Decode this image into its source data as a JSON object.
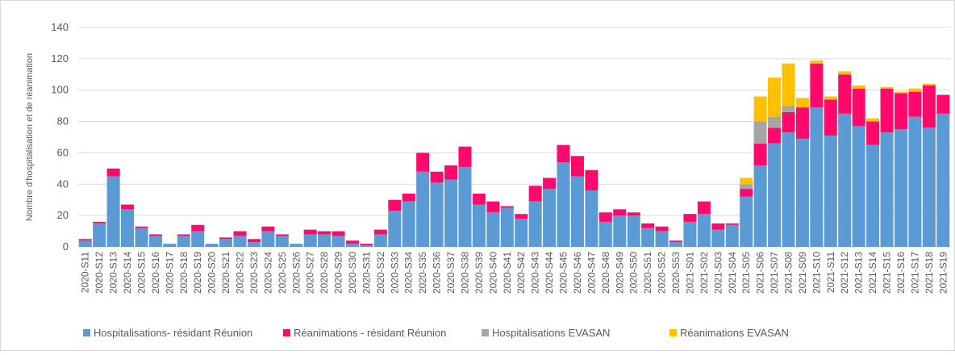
{
  "chart_data": {
    "type": "stacked_bar",
    "y_label": "Nombre d'hospitalisation et de réanimation",
    "categories": [
      "2020-S11",
      "2020-S12",
      "2020-S13",
      "2020-S14",
      "2020-S15",
      "2020-S16",
      "2020-S17",
      "2020-S18",
      "2020-S19",
      "2020-S20",
      "2020-S21",
      "2020-S22",
      "2020-S23",
      "2020-S24",
      "2020-S25",
      "2020-S26",
      "2020-S27",
      "2020-S28",
      "2020-S29",
      "2020-S30",
      "2020-S31",
      "2020-S32",
      "2020-S33",
      "2020-S34",
      "2020-S35",
      "2020-S36",
      "2020-S37",
      "2020-S38",
      "2020-S39",
      "2020-S40",
      "2020-S41",
      "2020-S42",
      "2020-S43",
      "2020-S44",
      "2020-S45",
      "2020-S46",
      "2020-S47",
      "2020-S48",
      "2020-S49",
      "2020-S50",
      "2020-S51",
      "2020-S52",
      "2020-S53",
      "2021-S01",
      "2021-S02",
      "2021-S03",
      "2021-S04",
      "2021-S05",
      "2021-S06",
      "2021-S07",
      "2021-S08",
      "2021-S09",
      "2021-S10",
      "2021-S11",
      "2021-S12",
      "2021-S13",
      "2021-S14",
      "2021-S15",
      "2021-S16",
      "2021-S17",
      "2021-S18",
      "2021-S19"
    ],
    "series": [
      {
        "name": "Hospitalisations- résidant Réunion",
        "color": "#5b9bd5",
        "values": [
          4,
          15,
          45,
          24,
          12,
          7,
          2,
          7,
          10,
          2,
          5,
          7,
          3,
          10,
          7,
          2,
          8,
          8,
          7,
          2,
          1,
          8,
          23,
          29,
          48,
          41,
          43,
          51,
          27,
          22,
          25,
          18,
          29,
          37,
          54,
          45,
          36,
          16,
          20,
          20,
          12,
          10,
          3,
          16,
          21,
          11,
          14,
          32,
          52,
          66,
          73,
          69,
          89,
          71,
          85,
          77,
          65,
          73,
          75,
          83,
          76,
          85
        ]
      },
      {
        "name": "Réanimations - résidant Réunion",
        "color": "#ff0a6c",
        "values": [
          1,
          1,
          5,
          3,
          1,
          1,
          0,
          1,
          4,
          0,
          1,
          3,
          2,
          3,
          1,
          0,
          3,
          2,
          3,
          2,
          1,
          3,
          7,
          5,
          12,
          7,
          9,
          13,
          7,
          7,
          1,
          3,
          10,
          7,
          11,
          13,
          13,
          6,
          4,
          2,
          3,
          3,
          1,
          5,
          8,
          4,
          1,
          5,
          14,
          10,
          13,
          20,
          28,
          23,
          25,
          24,
          15,
          28,
          23,
          16,
          27,
          12
        ]
      },
      {
        "name": "Hospitalisations  EVASAN",
        "color": "#a5a5a5",
        "values": [
          0,
          0,
          0,
          0,
          0,
          0,
          0,
          0,
          0,
          0,
          0,
          0,
          0,
          0,
          0,
          0,
          0,
          0,
          0,
          0,
          0,
          0,
          0,
          0,
          0,
          0,
          0,
          0,
          0,
          0,
          0,
          0,
          0,
          0,
          0,
          0,
          0,
          0,
          0,
          0,
          0,
          0,
          0,
          0,
          0,
          0,
          0,
          3,
          14,
          7,
          4,
          0,
          0,
          0,
          0,
          0,
          0,
          0,
          0,
          0,
          0,
          0
        ]
      },
      {
        "name": "Réanimations EVASAN",
        "color": "#ffc000",
        "values": [
          0,
          0,
          0,
          0,
          0,
          0,
          0,
          0,
          0,
          0,
          0,
          0,
          0,
          0,
          0,
          0,
          0,
          0,
          0,
          0,
          0,
          0,
          0,
          0,
          0,
          0,
          0,
          0,
          0,
          0,
          0,
          0,
          0,
          0,
          0,
          0,
          0,
          0,
          0,
          0,
          0,
          0,
          0,
          0,
          0,
          0,
          0,
          4,
          16,
          25,
          27,
          6,
          2,
          2,
          2,
          2,
          2,
          1,
          1,
          2,
          1,
          0
        ]
      }
    ],
    "ylim": [
      0,
      140
    ],
    "yticks": [
      0,
      20,
      40,
      60,
      80,
      100,
      120,
      140
    ],
    "grid": true
  }
}
